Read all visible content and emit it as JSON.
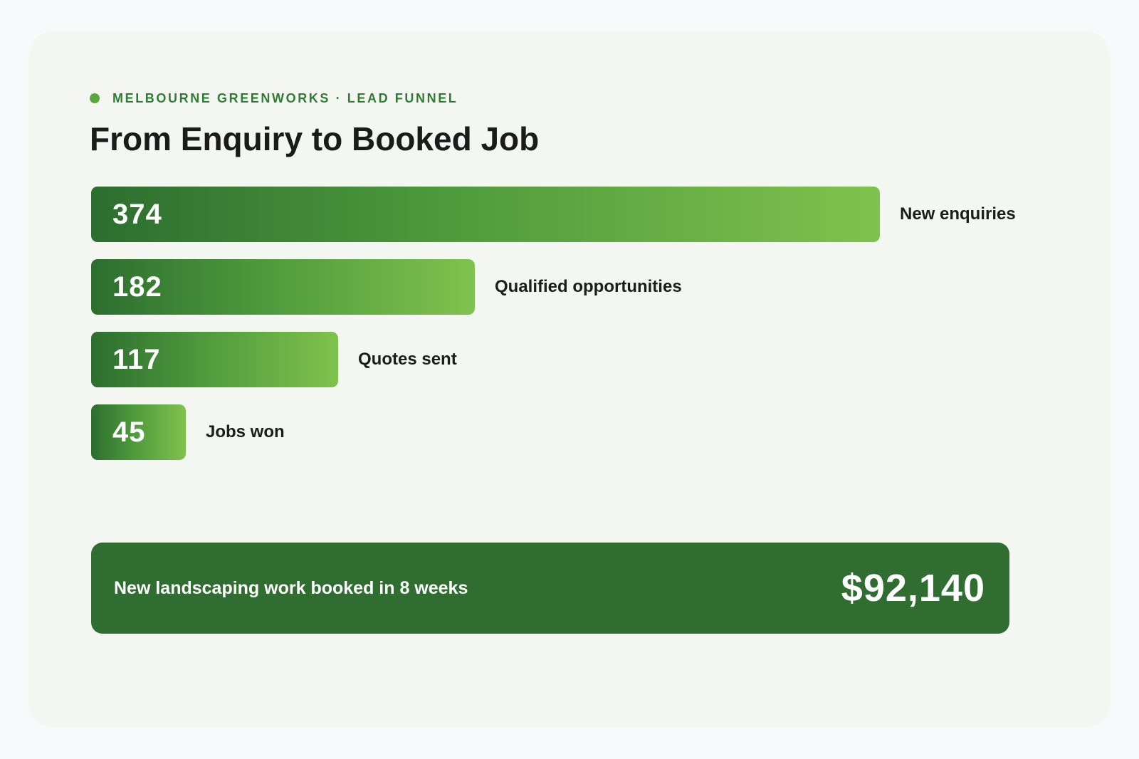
{
  "header": {
    "eyebrow": "MELBOURNE GREENWORKS · LEAD FUNNEL",
    "title": "From Enquiry to Booked Job"
  },
  "chart_data": {
    "type": "bar",
    "orientation": "horizontal",
    "categories": [
      "New enquiries",
      "Qualified opportunities",
      "Quotes sent",
      "Jobs won"
    ],
    "values": [
      374,
      182,
      117,
      45
    ],
    "title": "From Enquiry to Booked Job",
    "xlabel": "",
    "ylabel": "",
    "grid": false,
    "legend": "none"
  },
  "summary": {
    "label": "New landscaping work booked in 8 weeks",
    "value": "$92,140"
  },
  "colors": {
    "accent": "#2f7d32",
    "bar_start": "#2c6e2f",
    "bar_end": "#7fc24d",
    "summary_bg": "#2f6e30",
    "card_bg": "#f4f7f1"
  }
}
